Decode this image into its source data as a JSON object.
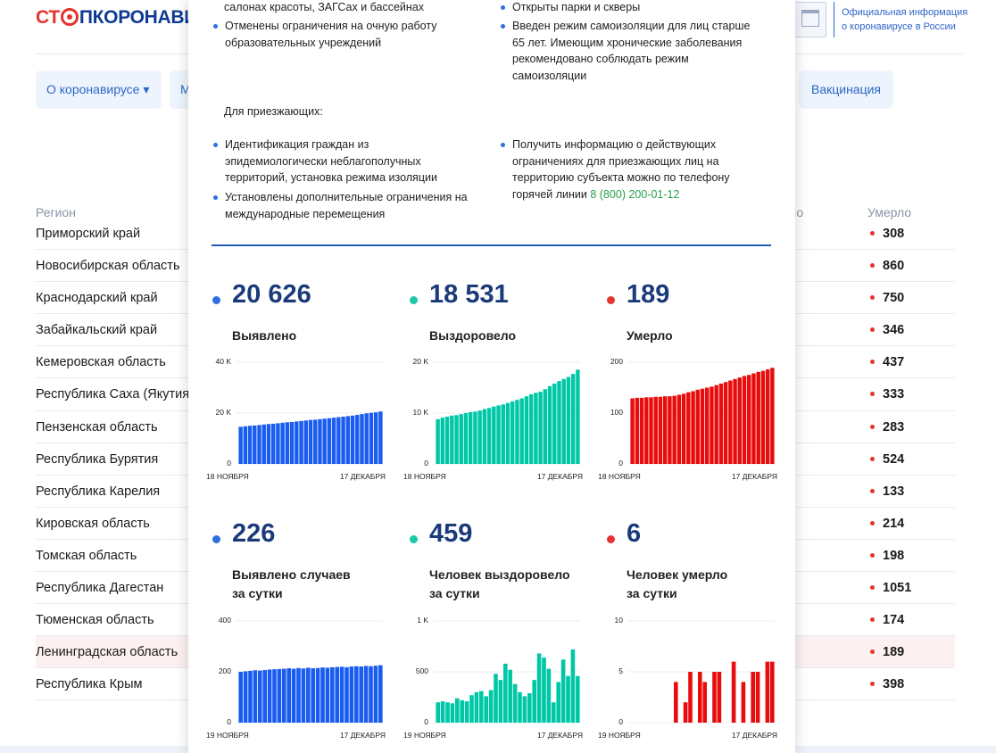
{
  "header": {
    "logo_part1": "СТ",
    "logo_part2": "ПКОРОНАВИ",
    "gov_text": "Официальная информация о коронавирусе в России"
  },
  "nav": {
    "item1": "О коронавирусе ▾",
    "item2": "М",
    "item3": "Вакцинация"
  },
  "table": {
    "col_region": "Регион",
    "col_partial": "ло",
    "col_died": "Умерло",
    "rows": [
      {
        "region": "Приморский край",
        "died": "308"
      },
      {
        "region": "Новосибирская область",
        "died": "860"
      },
      {
        "region": "Краснодарский край",
        "died": "750"
      },
      {
        "region": "Забайкальский край",
        "died": "346"
      },
      {
        "region": "Кемеровская область",
        "died": "437"
      },
      {
        "region": "Республика Саха (Якутия)",
        "died": "333"
      },
      {
        "region": "Пензенская область",
        "died": "283"
      },
      {
        "region": "Республика Бурятия",
        "died": "524"
      },
      {
        "region": "Республика Карелия",
        "died": "133"
      },
      {
        "region": "Кировская область",
        "died": "214"
      },
      {
        "region": "Томская область",
        "died": "198"
      },
      {
        "region": "Республика Дагестан",
        "died": "1051"
      },
      {
        "region": "Тюменская область",
        "died": "174"
      },
      {
        "region": "Ленинградская область",
        "died": "189"
      },
      {
        "region": "Республика Крым",
        "died": "398"
      }
    ]
  },
  "modal": {
    "top_left_1": "салонах красоты, ЗАГСах и бассейнах",
    "top_left_2": "Отменены ограничения на очную работу образовательных учреждений",
    "top_right_1": "Открыты парки и скверы",
    "top_right_2": "Введен режим самоизоляции для лиц старше 65 лет. Имеющим хронические заболевания рекомендовано соблюдать режим самоизоляции",
    "visitors_heading": "Для приезжающих:",
    "visitors_left_1": "Идентификация граждан из эпидемиологически неблагополучных территорий, установка режима изоляции",
    "visitors_left_2": "Установлены дополнительные ограничения на международные перемещения",
    "visitors_right_1": "Получить информацию о действующих ограничениях для приезжающих лиц на территорию субъекта можно по телефону горячей линии",
    "hotline": "8 (800) 200-01-12"
  },
  "stats": [
    {
      "value": "20 626",
      "label": "Выявлено",
      "color": "#2f6fe0"
    },
    {
      "value": "18 531",
      "label": "Выздоровело",
      "color": "#1cc8a3"
    },
    {
      "value": "189",
      "label": "Умерло",
      "color": "#e3342f"
    },
    {
      "value": "226",
      "label": "Выявлено случаев\nза сутки",
      "color": "#2f6fe0"
    },
    {
      "value": "459",
      "label": "Человек выздоровело\nза сутки",
      "color": "#1cc8a3"
    },
    {
      "value": "6",
      "label": "Человек умерло\nза сутки",
      "color": "#e3342f"
    }
  ],
  "chart_data": [
    {
      "type": "bar",
      "title": "Выявлено",
      "color": "#1a5cf0",
      "ylim": [
        0,
        40000
      ],
      "y_ticks": [
        "0",
        "20 K",
        "40 K"
      ],
      "x_start": "18 НОЯБРЯ",
      "x_end": "17 ДЕКАБРЯ",
      "values": [
        14600,
        14800,
        15000,
        15100,
        15300,
        15500,
        15700,
        15800,
        16000,
        16200,
        16400,
        16500,
        16700,
        16900,
        17100,
        17300,
        17400,
        17600,
        17800,
        18000,
        18200,
        18400,
        18600,
        18800,
        19000,
        19300,
        19600,
        19900,
        20100,
        20300,
        20626
      ]
    },
    {
      "type": "bar",
      "title": "Выздоровело",
      "color": "#00c8a6",
      "ylim": [
        0,
        20000
      ],
      "y_ticks": [
        "0",
        "10 K",
        "20 K"
      ],
      "x_start": "18 НОЯБРЯ",
      "x_end": "17 ДЕКАБРЯ",
      "values": [
        8800,
        9100,
        9300,
        9500,
        9600,
        9800,
        10000,
        10200,
        10300,
        10500,
        10800,
        11000,
        11300,
        11500,
        11700,
        12000,
        12300,
        12600,
        12900,
        13300,
        13700,
        14000,
        14200,
        14700,
        15300,
        15800,
        16300,
        16700,
        17100,
        17700,
        18531
      ]
    },
    {
      "type": "bar",
      "title": "Умерло",
      "color": "#e80c0c",
      "ylim": [
        0,
        200
      ],
      "y_ticks": [
        "0",
        "100",
        "200"
      ],
      "x_start": "18 НОЯБРЯ",
      "x_end": "17 ДЕКАБРЯ",
      "values": [
        129,
        130,
        130,
        131,
        131,
        132,
        132,
        133,
        133,
        134,
        136,
        138,
        141,
        143,
        146,
        148,
        150,
        152,
        155,
        158,
        161,
        164,
        167,
        170,
        173,
        175,
        178,
        181,
        183,
        186,
        189
      ]
    },
    {
      "type": "bar",
      "title": "Выявлено случаев за сутки",
      "color": "#1a5cf0",
      "ylim": [
        0,
        400
      ],
      "y_ticks": [
        "0",
        "200",
        "400"
      ],
      "x_start": "19 НОЯБРЯ",
      "x_end": "17 ДЕКАБРЯ",
      "values": [
        200,
        202,
        204,
        206,
        205,
        207,
        209,
        210,
        211,
        212,
        214,
        212,
        215,
        213,
        216,
        214,
        215,
        217,
        216,
        218,
        219,
        220,
        218,
        221,
        222,
        221,
        223,
        222,
        224,
        226
      ]
    },
    {
      "type": "bar",
      "title": "Человек выздоровело за сутки",
      "color": "#00c8a6",
      "ylim": [
        0,
        1000
      ],
      "y_ticks": [
        "0",
        "500",
        "1 K"
      ],
      "x_start": "19 НОЯБРЯ",
      "x_end": "17 ДЕКАБРЯ",
      "values": [
        200,
        210,
        200,
        190,
        240,
        220,
        210,
        270,
        300,
        310,
        260,
        320,
        480,
        420,
        580,
        520,
        380,
        300,
        260,
        290,
        420,
        680,
        640,
        530,
        200,
        400,
        620,
        460,
        720,
        459
      ]
    },
    {
      "type": "bar",
      "title": "Человек умерло за сутки",
      "color": "#e80c0c",
      "ylim": [
        0,
        10
      ],
      "y_ticks": [
        "0",
        "5",
        "10"
      ],
      "x_start": "19 НОЯБРЯ",
      "x_end": "17 ДЕКАБРЯ",
      "values": [
        0,
        0,
        0,
        0,
        0,
        0,
        0,
        0,
        0,
        4,
        0,
        2,
        5,
        0,
        5,
        4,
        0,
        5,
        5,
        0,
        0,
        6,
        0,
        4,
        0,
        5,
        5,
        0,
        6,
        6
      ]
    }
  ]
}
